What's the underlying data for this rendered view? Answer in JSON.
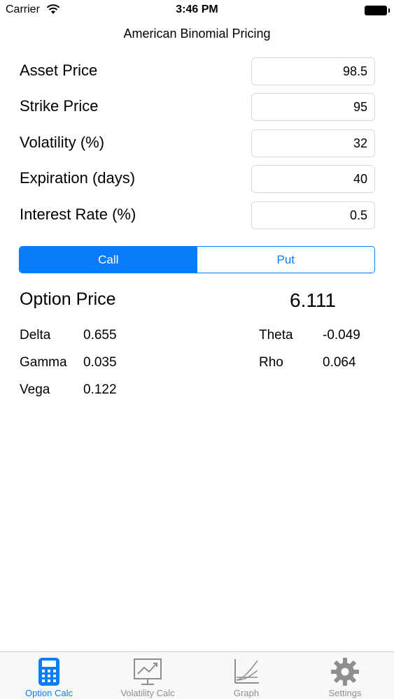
{
  "status_bar": {
    "carrier": "Carrier",
    "time": "3:46 PM"
  },
  "nav": {
    "title": "American Binomial Pricing"
  },
  "inputs": [
    {
      "label": "Asset Price",
      "value": "98.5"
    },
    {
      "label": "Strike Price",
      "value": "95"
    },
    {
      "label": "Volatility (%)",
      "value": "32"
    },
    {
      "label": "Expiration (days)",
      "value": "40"
    },
    {
      "label": "Interest Rate (%)",
      "value": "0.5"
    }
  ],
  "option_type": {
    "call_label": "Call",
    "put_label": "Put",
    "selected": "Call"
  },
  "result": {
    "option_price_label": "Option Price",
    "option_price_value": "6.111",
    "greeks": {
      "delta": {
        "label": "Delta",
        "value": "0.655"
      },
      "gamma": {
        "label": "Gamma",
        "value": "0.035"
      },
      "vega": {
        "label": "Vega",
        "value": "0.122"
      },
      "theta": {
        "label": "Theta",
        "value": "-0.049"
      },
      "rho": {
        "label": "Rho",
        "value": "0.064"
      }
    }
  },
  "tabs": [
    {
      "label": "Option Calc",
      "icon": "calculator-icon",
      "active": true
    },
    {
      "label": "Volatility Calc",
      "icon": "chart-monitor-icon",
      "active": false
    },
    {
      "label": "Graph",
      "icon": "graph-icon",
      "active": false
    },
    {
      "label": "Settings",
      "icon": "gear-icon",
      "active": false
    }
  ],
  "colors": {
    "accent": "#0a7cf8",
    "inactive_tab": "#8e8e8e",
    "tab_bar_bg": "#f8f8f8"
  }
}
